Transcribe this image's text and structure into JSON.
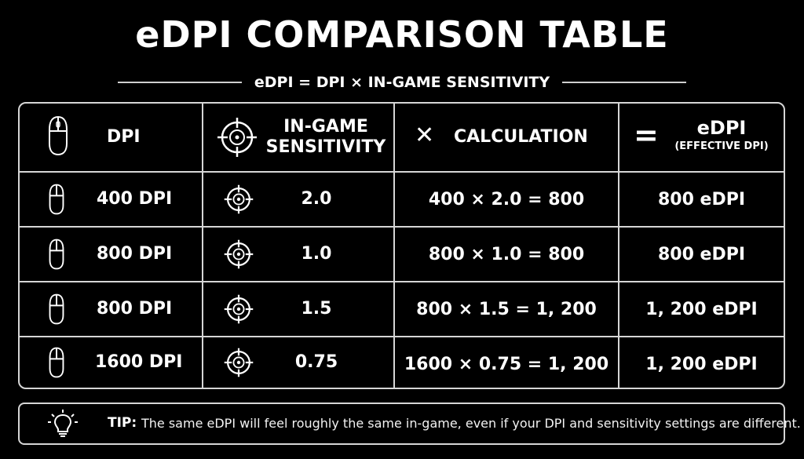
{
  "title": "eDPI COMPARISON TABLE",
  "subtitle": "eDPI = DPI × IN-GAME SENSITIVITY",
  "header": {
    "dpi": "DPI",
    "sensitivity_line1": "IN-GAME",
    "sensitivity_line2": "SENSITIVITY",
    "calc_symbol": "✕",
    "calculation": "CALCULATION",
    "equals_symbol": "=",
    "edpi": "eDPI",
    "edpi_sub": "(EFFECTIVE DPI)"
  },
  "rows": [
    {
      "dpi": "400 DPI",
      "sensitivity": "2.0",
      "calculation": "400 × 2.0 = 800",
      "edpi": "800 eDPI"
    },
    {
      "dpi": "800 DPI",
      "sensitivity": "1.0",
      "calculation": "800 × 1.0 = 800",
      "edpi": "800 eDPI"
    },
    {
      "dpi": "800 DPI",
      "sensitivity": "1.5",
      "calculation": "800 × 1.5 = 1, 200",
      "edpi": "1, 200 eDPI"
    },
    {
      "dpi": "1600 DPI",
      "sensitivity": "0.75",
      "calculation": "1600 × 0.75 = 1, 200",
      "edpi": "1, 200 eDPI"
    }
  ],
  "tip": {
    "label": "TIP:",
    "text": "The same eDPI will feel roughly the same in-game, even if your DPI and sensitivity settings are different."
  },
  "icons": {
    "mouse": "mouse-icon",
    "target": "crosshair-icon",
    "bulb": "lightbulb-icon"
  }
}
